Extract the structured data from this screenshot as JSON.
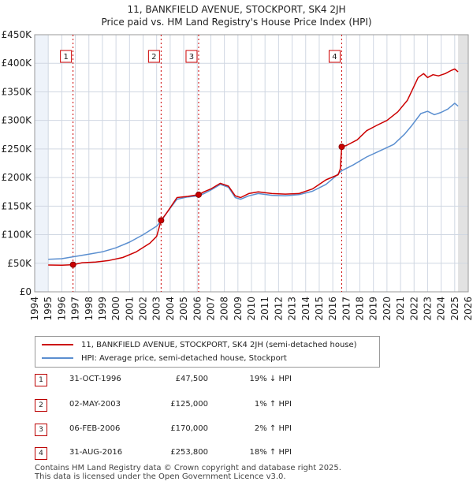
{
  "header": {
    "title": "11, BANKFIELD AVENUE, STOCKPORT, SK4 2JH",
    "subtitle": "Price paid vs. HM Land Registry's House Price Index (HPI)"
  },
  "chart_data": {
    "type": "line",
    "title": "11, BANKFIELD AVENUE, STOCKPORT, SK4 2JH",
    "subtitle": "Price paid vs. HM Land Registry's House Price Index (HPI)",
    "xlim": [
      1994,
      2026
    ],
    "ylim": [
      0,
      450000
    ],
    "x_ticks": [
      "1994",
      "1995",
      "1996",
      "1997",
      "1998",
      "1999",
      "2000",
      "2001",
      "2002",
      "2003",
      "2004",
      "2005",
      "2006",
      "2007",
      "2008",
      "2009",
      "2010",
      "2011",
      "2012",
      "2013",
      "2014",
      "2015",
      "2016",
      "2017",
      "2018",
      "2019",
      "2020",
      "2021",
      "2022",
      "2023",
      "2024",
      "2025",
      "2026"
    ],
    "y_ticks": [
      {
        "value": 0,
        "label": "£0"
      },
      {
        "value": 50000,
        "label": "£50K"
      },
      {
        "value": 100000,
        "label": "£100K"
      },
      {
        "value": 150000,
        "label": "£150K"
      },
      {
        "value": 200000,
        "label": "£200K"
      },
      {
        "value": 250000,
        "label": "£250K"
      },
      {
        "value": 300000,
        "label": "£300K"
      },
      {
        "value": 350000,
        "label": "£350K"
      },
      {
        "value": 400000,
        "label": "£400K"
      },
      {
        "value": 450000,
        "label": "£450K"
      }
    ],
    "data_start": 1995,
    "data_end": 2025.25,
    "series": [
      {
        "name": "11, BANKFIELD AVENUE, STOCKPORT, SK4 2JH (semi-detached house)",
        "color": "#cc0000",
        "points": [
          [
            1995,
            47000
          ],
          [
            1996,
            46500
          ],
          [
            1996.83,
            47500
          ],
          [
            1997.5,
            51000
          ],
          [
            1998.5,
            52000
          ],
          [
            1999.5,
            55000
          ],
          [
            2000.5,
            60000
          ],
          [
            2001.5,
            70000
          ],
          [
            2002.5,
            85000
          ],
          [
            2003.0,
            97000
          ],
          [
            2003.33,
            125000
          ],
          [
            2003.8,
            140000
          ],
          [
            2004.5,
            165000
          ],
          [
            2005.3,
            167000
          ],
          [
            2006.1,
            170000
          ],
          [
            2006.5,
            175000
          ],
          [
            2007.0,
            180000
          ],
          [
            2007.7,
            190000
          ],
          [
            2008.3,
            185000
          ],
          [
            2008.8,
            168000
          ],
          [
            2009.2,
            165000
          ],
          [
            2009.8,
            172000
          ],
          [
            2010.5,
            175000
          ],
          [
            2011.5,
            172000
          ],
          [
            2012.5,
            171000
          ],
          [
            2013.5,
            172000
          ],
          [
            2014.5,
            180000
          ],
          [
            2015.5,
            196000
          ],
          [
            2016.4,
            205000
          ],
          [
            2016.55,
            215000
          ],
          [
            2016.66,
            253800
          ],
          [
            2017.0,
            256000
          ],
          [
            2017.8,
            266000
          ],
          [
            2018.5,
            282000
          ],
          [
            2019.3,
            292000
          ],
          [
            2020.0,
            300000
          ],
          [
            2020.8,
            315000
          ],
          [
            2021.5,
            335000
          ],
          [
            2022.3,
            375000
          ],
          [
            2022.7,
            382000
          ],
          [
            2023.0,
            375000
          ],
          [
            2023.4,
            380000
          ],
          [
            2023.8,
            378000
          ],
          [
            2024.3,
            382000
          ],
          [
            2024.7,
            387000
          ],
          [
            2025.0,
            390000
          ],
          [
            2025.25,
            385000
          ]
        ]
      },
      {
        "name": "HPI: Average price, semi-detached house, Stockport",
        "color": "#5b8fd0",
        "points": [
          [
            1995,
            57000
          ],
          [
            1996,
            58000
          ],
          [
            1997,
            62000
          ],
          [
            1998,
            66000
          ],
          [
            1999,
            70000
          ],
          [
            2000,
            77000
          ],
          [
            2001,
            87000
          ],
          [
            2002,
            100000
          ],
          [
            2003.0,
            115000
          ],
          [
            2003.33,
            124000
          ],
          [
            2003.8,
            140000
          ],
          [
            2004.5,
            162000
          ],
          [
            2005.3,
            166000
          ],
          [
            2006.1,
            168000
          ],
          [
            2006.5,
            172000
          ],
          [
            2007.0,
            178000
          ],
          [
            2007.7,
            188000
          ],
          [
            2008.3,
            183000
          ],
          [
            2008.8,
            165000
          ],
          [
            2009.2,
            162000
          ],
          [
            2009.8,
            168000
          ],
          [
            2010.5,
            172000
          ],
          [
            2011.5,
            169000
          ],
          [
            2012.5,
            168000
          ],
          [
            2013.5,
            170000
          ],
          [
            2014.5,
            176000
          ],
          [
            2015.5,
            188000
          ],
          [
            2016.0,
            198000
          ],
          [
            2016.66,
            212000
          ],
          [
            2017.5,
            222000
          ],
          [
            2018.5,
            236000
          ],
          [
            2019.5,
            247000
          ],
          [
            2020.5,
            258000
          ],
          [
            2021.3,
            276000
          ],
          [
            2021.8,
            290000
          ],
          [
            2022.5,
            312000
          ],
          [
            2023.0,
            316000
          ],
          [
            2023.5,
            310000
          ],
          [
            2024.0,
            314000
          ],
          [
            2024.5,
            320000
          ],
          [
            2025.0,
            330000
          ],
          [
            2025.25,
            325000
          ]
        ]
      }
    ],
    "sales": [
      {
        "label": "1",
        "x": 1996.83,
        "price": 47500
      },
      {
        "label": "2",
        "x": 2003.33,
        "price": 125000
      },
      {
        "label": "3",
        "x": 2006.1,
        "price": 170000
      },
      {
        "label": "4",
        "x": 2016.66,
        "price": 253800
      }
    ],
    "shaded_from": 2025.25,
    "grid": true
  },
  "legend": {
    "items": [
      {
        "label": "11, BANKFIELD AVENUE, STOCKPORT, SK4 2JH (semi-detached house)",
        "color": "#cc0000"
      },
      {
        "label": "HPI: Average price, semi-detached house, Stockport",
        "color": "#5b8fd0"
      }
    ]
  },
  "sales_table": [
    {
      "num": "1",
      "date": "31-OCT-1996",
      "price": "£47,500",
      "hpi": "19% ↓ HPI"
    },
    {
      "num": "2",
      "date": "02-MAY-2003",
      "price": "£125,000",
      "hpi": "1% ↑ HPI"
    },
    {
      "num": "3",
      "date": "06-FEB-2006",
      "price": "£170,000",
      "hpi": "2% ↑ HPI"
    },
    {
      "num": "4",
      "date": "31-AUG-2016",
      "price": "£253,800",
      "hpi": "18% ↑ HPI"
    }
  ],
  "footer": {
    "line1": "Contains HM Land Registry data © Crown copyright and database right 2025.",
    "line2": "This data is licensed under the Open Government Licence v3.0."
  }
}
